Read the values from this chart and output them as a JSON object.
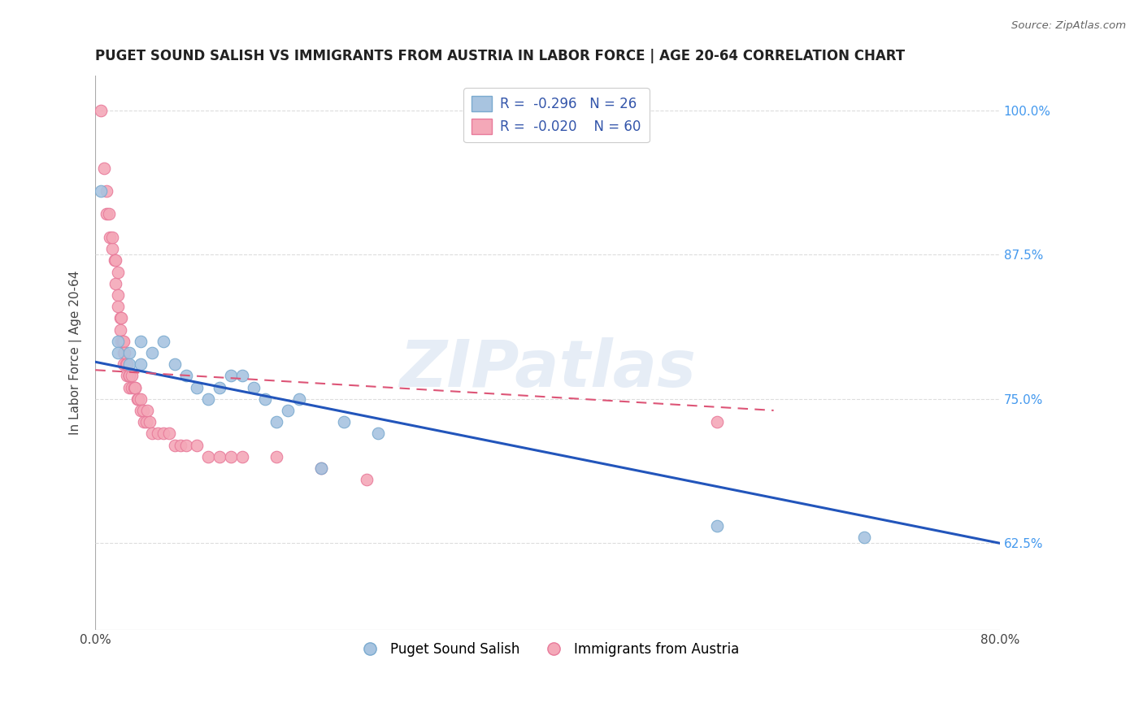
{
  "title": "PUGET SOUND SALISH VS IMMIGRANTS FROM AUSTRIA IN LABOR FORCE | AGE 20-64 CORRELATION CHART",
  "source": "Source: ZipAtlas.com",
  "xlabel": "",
  "ylabel": "In Labor Force | Age 20-64",
  "xlim": [
    0.0,
    0.8
  ],
  "ylim": [
    0.55,
    1.03
  ],
  "xticks": [
    0.0,
    0.1,
    0.2,
    0.3,
    0.4,
    0.5,
    0.6,
    0.7,
    0.8
  ],
  "xticklabels": [
    "0.0%",
    "",
    "",
    "",
    "",
    "",
    "",
    "",
    "80.0%"
  ],
  "ytick_positions": [
    0.625,
    0.75,
    0.875,
    1.0
  ],
  "yticklabels": [
    "62.5%",
    "75.0%",
    "87.5%",
    "100.0%"
  ],
  "blue_color": "#A8C4E0",
  "pink_color": "#F4A8B8",
  "blue_edge": "#7AAACF",
  "pink_edge": "#E87A9A",
  "trend_blue": "#2255BB",
  "trend_pink": "#DD5577",
  "legend_r_blue": "-0.296",
  "legend_n_blue": "26",
  "legend_r_pink": "-0.020",
  "legend_n_pink": "60",
  "legend_label_blue": "Puget Sound Salish",
  "legend_label_pink": "Immigrants from Austria",
  "blue_x": [
    0.005,
    0.02,
    0.02,
    0.03,
    0.03,
    0.04,
    0.04,
    0.05,
    0.06,
    0.07,
    0.08,
    0.09,
    0.1,
    0.11,
    0.12,
    0.13,
    0.14,
    0.15,
    0.16,
    0.17,
    0.18,
    0.2,
    0.22,
    0.25,
    0.55,
    0.68
  ],
  "blue_y": [
    0.93,
    0.8,
    0.79,
    0.79,
    0.78,
    0.8,
    0.78,
    0.79,
    0.8,
    0.78,
    0.77,
    0.76,
    0.75,
    0.76,
    0.77,
    0.77,
    0.76,
    0.75,
    0.73,
    0.74,
    0.75,
    0.69,
    0.73,
    0.72,
    0.64,
    0.63
  ],
  "pink_x": [
    0.005,
    0.008,
    0.01,
    0.01,
    0.012,
    0.013,
    0.015,
    0.015,
    0.017,
    0.018,
    0.018,
    0.02,
    0.02,
    0.02,
    0.022,
    0.022,
    0.023,
    0.023,
    0.024,
    0.025,
    0.025,
    0.025,
    0.026,
    0.027,
    0.028,
    0.028,
    0.03,
    0.03,
    0.03,
    0.03,
    0.032,
    0.032,
    0.034,
    0.035,
    0.035,
    0.037,
    0.038,
    0.04,
    0.04,
    0.042,
    0.043,
    0.045,
    0.046,
    0.048,
    0.05,
    0.055,
    0.06,
    0.065,
    0.07,
    0.075,
    0.08,
    0.09,
    0.1,
    0.11,
    0.12,
    0.13,
    0.16,
    0.2,
    0.24,
    0.55
  ],
  "pink_y": [
    1.0,
    0.95,
    0.93,
    0.91,
    0.91,
    0.89,
    0.88,
    0.89,
    0.87,
    0.87,
    0.85,
    0.84,
    0.83,
    0.86,
    0.82,
    0.81,
    0.82,
    0.8,
    0.8,
    0.8,
    0.79,
    0.78,
    0.79,
    0.78,
    0.78,
    0.77,
    0.77,
    0.77,
    0.77,
    0.76,
    0.77,
    0.76,
    0.76,
    0.76,
    0.76,
    0.75,
    0.75,
    0.75,
    0.74,
    0.74,
    0.73,
    0.73,
    0.74,
    0.73,
    0.72,
    0.72,
    0.72,
    0.72,
    0.71,
    0.71,
    0.71,
    0.71,
    0.7,
    0.7,
    0.7,
    0.7,
    0.7,
    0.69,
    0.68,
    0.73
  ],
  "trend_blue_x0": 0.0,
  "trend_blue_y0": 0.782,
  "trend_blue_x1": 0.8,
  "trend_blue_y1": 0.625,
  "trend_pink_x0": 0.0,
  "trend_pink_y0": 0.775,
  "trend_pink_x1": 0.6,
  "trend_pink_y1": 0.74,
  "watermark": "ZIPatlas",
  "background_color": "#FFFFFF",
  "grid_color": "#DDDDDD"
}
